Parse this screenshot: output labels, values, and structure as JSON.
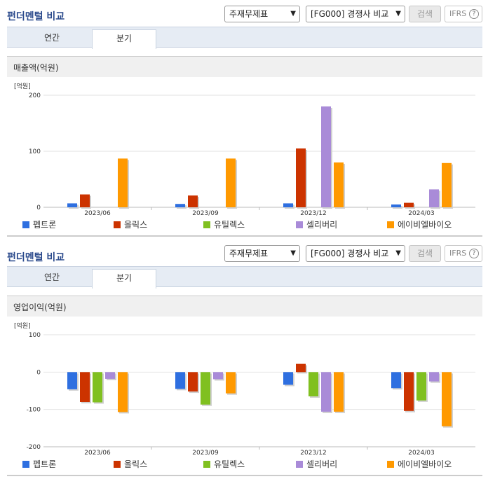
{
  "panels": [
    {
      "title": "펀더멘털 비교",
      "select_statement": "주재무제표",
      "select_group": "[FG000] 경쟁사 비교",
      "search_label": "검색",
      "ifrs_label": "IFRS",
      "help_glyph": "?",
      "tabs": [
        {
          "label": "연간"
        },
        {
          "label": "분기"
        }
      ],
      "active_tab": 1,
      "chart_title": "매출액(억원)"
    },
    {
      "title": "펀더멘털 비교",
      "select_statement": "주재무제표",
      "select_group": "[FG000] 경쟁사 비교",
      "search_label": "검색",
      "ifrs_label": "IFRS",
      "help_glyph": "?",
      "tabs": [
        {
          "label": "연간"
        },
        {
          "label": "분기"
        }
      ],
      "active_tab": 1,
      "chart_title": "영업이익(억원)"
    }
  ],
  "chart_data": [
    {
      "type": "bar",
      "title": "매출액(억원)",
      "unit_label": "[억원]",
      "categories": [
        "2023/06",
        "2023/09",
        "2023/12",
        "2024/03"
      ],
      "ylim": [
        0,
        200
      ],
      "yticks": [
        0,
        100,
        200
      ],
      "grid": true,
      "legend_position": "bottom",
      "series": [
        {
          "name": "펩트론",
          "color": "#2e6fe0",
          "values": [
            7,
            6,
            7,
            5
          ]
        },
        {
          "name": "올릭스",
          "color": "#cc3300",
          "values": [
            23,
            21,
            105,
            8
          ]
        },
        {
          "name": "유틸렉스",
          "color": "#80c020",
          "values": [
            0,
            0,
            0,
            0
          ]
        },
        {
          "name": "셀리버리",
          "color": "#a98bd8",
          "values": [
            0,
            0,
            180,
            32
          ]
        },
        {
          "name": "에이비엘바이오",
          "color": "#ff9900",
          "values": [
            87,
            87,
            80,
            79
          ]
        }
      ]
    },
    {
      "type": "bar",
      "title": "영업이익(억원)",
      "unit_label": "[억원]",
      "categories": [
        "2023/06",
        "2023/09",
        "2023/12",
        "2024/03"
      ],
      "ylim": [
        -200,
        100
      ],
      "yticks": [
        -200,
        -100,
        0,
        100
      ],
      "grid": true,
      "legend_position": "bottom",
      "series": [
        {
          "name": "펩트론",
          "color": "#2e6fe0",
          "values": [
            -46,
            -45,
            -34,
            -43
          ]
        },
        {
          "name": "올릭스",
          "color": "#cc3300",
          "values": [
            -80,
            -52,
            22,
            -104
          ]
        },
        {
          "name": "유틸렉스",
          "color": "#80c020",
          "values": [
            -81,
            -87,
            -65,
            -76
          ]
        },
        {
          "name": "셀리버리",
          "color": "#a98bd8",
          "values": [
            -18,
            -19,
            -106,
            -25
          ]
        },
        {
          "name": "에이비엘바이오",
          "color": "#ff9900",
          "values": [
            -107,
            -57,
            -106,
            -145
          ]
        }
      ]
    }
  ]
}
